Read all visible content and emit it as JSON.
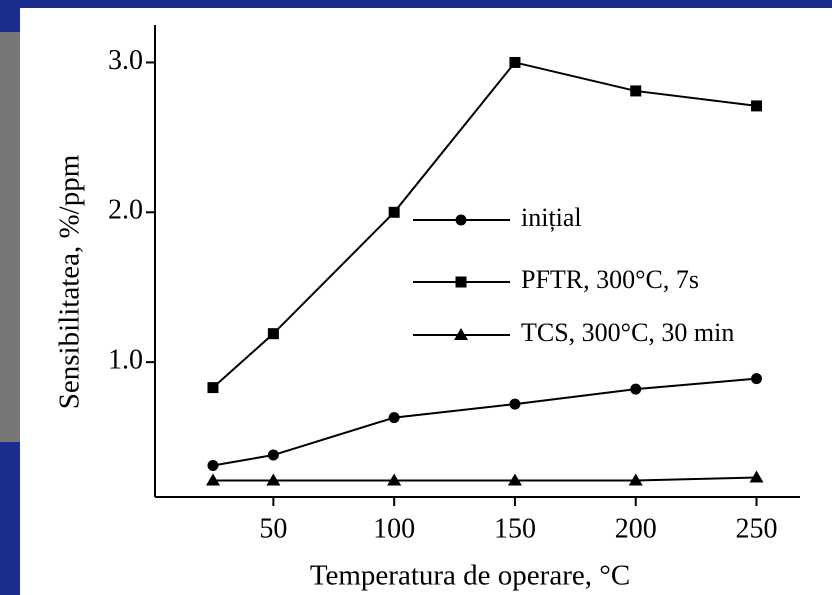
{
  "chart_data": {
    "type": "line",
    "x_label": "Temperatura de operare, °C",
    "y_label": "Sensibilitatea, %/ppm",
    "xlim": [
      1,
      268
    ],
    "xticks": [
      50,
      100,
      150,
      200,
      250
    ],
    "ylim": [
      0.1,
      3.25
    ],
    "yticks": [
      {
        "value": 1,
        "label": "1.0"
      },
      {
        "value": 2,
        "label": "2.0"
      },
      {
        "value": 3,
        "label": "3.0"
      }
    ],
    "legend": "right",
    "series": [
      {
        "name": "inițial",
        "marker": "circle",
        "color": "#000000",
        "x": [
          25,
          50,
          100,
          150,
          200,
          250
        ],
        "values": [
          0.31,
          0.38,
          0.63,
          0.72,
          0.82,
          0.89
        ]
      },
      {
        "name": "PFTR, 300°C, 7s",
        "marker": "square",
        "color": "#000000",
        "x": [
          25,
          50,
          100,
          150,
          200,
          250
        ],
        "values": [
          0.83,
          1.19,
          2.0,
          3.0,
          2.81,
          2.71
        ]
      },
      {
        "name": "TCS, 300°C, 30 min",
        "marker": "triangle",
        "color": "#000000",
        "x": [
          25,
          50,
          100,
          150,
          200,
          250
        ],
        "values": [
          0.21,
          0.21,
          0.21,
          0.21,
          0.21,
          0.23
        ]
      }
    ]
  }
}
